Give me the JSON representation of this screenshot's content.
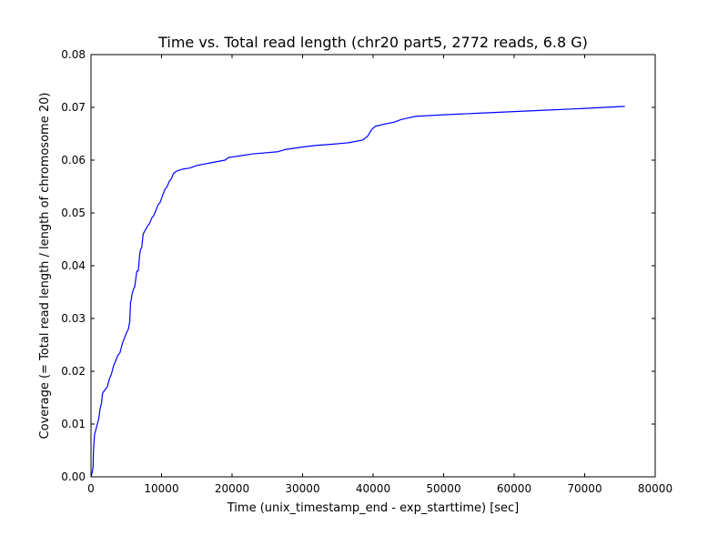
{
  "chart_data": {
    "type": "line",
    "title": "Time vs. Total read length (chr20 part5, 2772 reads, 6.8 G)",
    "xlabel": "Time (unix_timestamp_end - exp_starttime) [sec]",
    "ylabel": "Coverage (= Total read length / length of chromosome 20)",
    "xlim": [
      0,
      80000
    ],
    "ylim": [
      0,
      0.08
    ],
    "xticks": [
      0,
      10000,
      20000,
      30000,
      40000,
      50000,
      60000,
      70000,
      80000
    ],
    "xtick_labels": [
      "0",
      "10000",
      "20000",
      "30000",
      "40000",
      "50000",
      "60000",
      "70000",
      "80000"
    ],
    "yticks": [
      0,
      0.01,
      0.02,
      0.03,
      0.04,
      0.05,
      0.06,
      0.07,
      0.08
    ],
    "ytick_labels": [
      "0.00",
      "0.01",
      "0.02",
      "0.03",
      "0.04",
      "0.05",
      "0.06",
      "0.07",
      "0.08"
    ],
    "grid": false,
    "color": "#0000ff",
    "series": [
      {
        "x": [
          0,
          100,
          200,
          300,
          350,
          400,
          500,
          700,
          900,
          1100,
          1300,
          1500,
          1600,
          1700,
          2000,
          2300,
          2600,
          2900,
          3200,
          3500,
          3800,
          4100,
          4300,
          4500,
          4800,
          5100,
          5300,
          5500,
          5600,
          5700,
          5800,
          6000,
          6200,
          6500,
          6700,
          6900,
          7000,
          7200,
          7400,
          7600,
          7800,
          8000,
          8300,
          8600,
          8900,
          9200,
          9500,
          9800,
          10200,
          10500,
          10800,
          11100,
          11400,
          11700,
          12000,
          12300,
          13000,
          14000,
          15000,
          17000,
          19000,
          19500,
          21000,
          23000,
          26500,
          27500,
          30000,
          32000,
          34000,
          36500,
          38500,
          39200,
          39800,
          40300,
          41500,
          43000,
          44000,
          45000,
          46000,
          50000,
          55000,
          60000,
          65000,
          70000,
          75700
        ],
        "y": [
          0.0,
          0.0005,
          0.001,
          0.002,
          0.005,
          0.006,
          0.008,
          0.009,
          0.01,
          0.011,
          0.013,
          0.014,
          0.0155,
          0.016,
          0.0165,
          0.017,
          0.0185,
          0.0195,
          0.021,
          0.022,
          0.023,
          0.0235,
          0.0245,
          0.0255,
          0.0265,
          0.0275,
          0.028,
          0.0295,
          0.033,
          0.0335,
          0.0345,
          0.0355,
          0.036,
          0.039,
          0.039,
          0.042,
          0.043,
          0.0435,
          0.046,
          0.0465,
          0.047,
          0.0475,
          0.048,
          0.049,
          0.0495,
          0.0505,
          0.0515,
          0.052,
          0.0535,
          0.0545,
          0.055,
          0.056,
          0.0565,
          0.0575,
          0.0578,
          0.058,
          0.0583,
          0.0585,
          0.059,
          0.0595,
          0.06,
          0.0605,
          0.0608,
          0.0612,
          0.0616,
          0.062,
          0.0625,
          0.0628,
          0.063,
          0.0633,
          0.0638,
          0.0645,
          0.0658,
          0.0664,
          0.0668,
          0.0672,
          0.0677,
          0.068,
          0.0683,
          0.0686,
          0.0689,
          0.0692,
          0.0695,
          0.0698,
          0.0702
        ]
      }
    ]
  }
}
